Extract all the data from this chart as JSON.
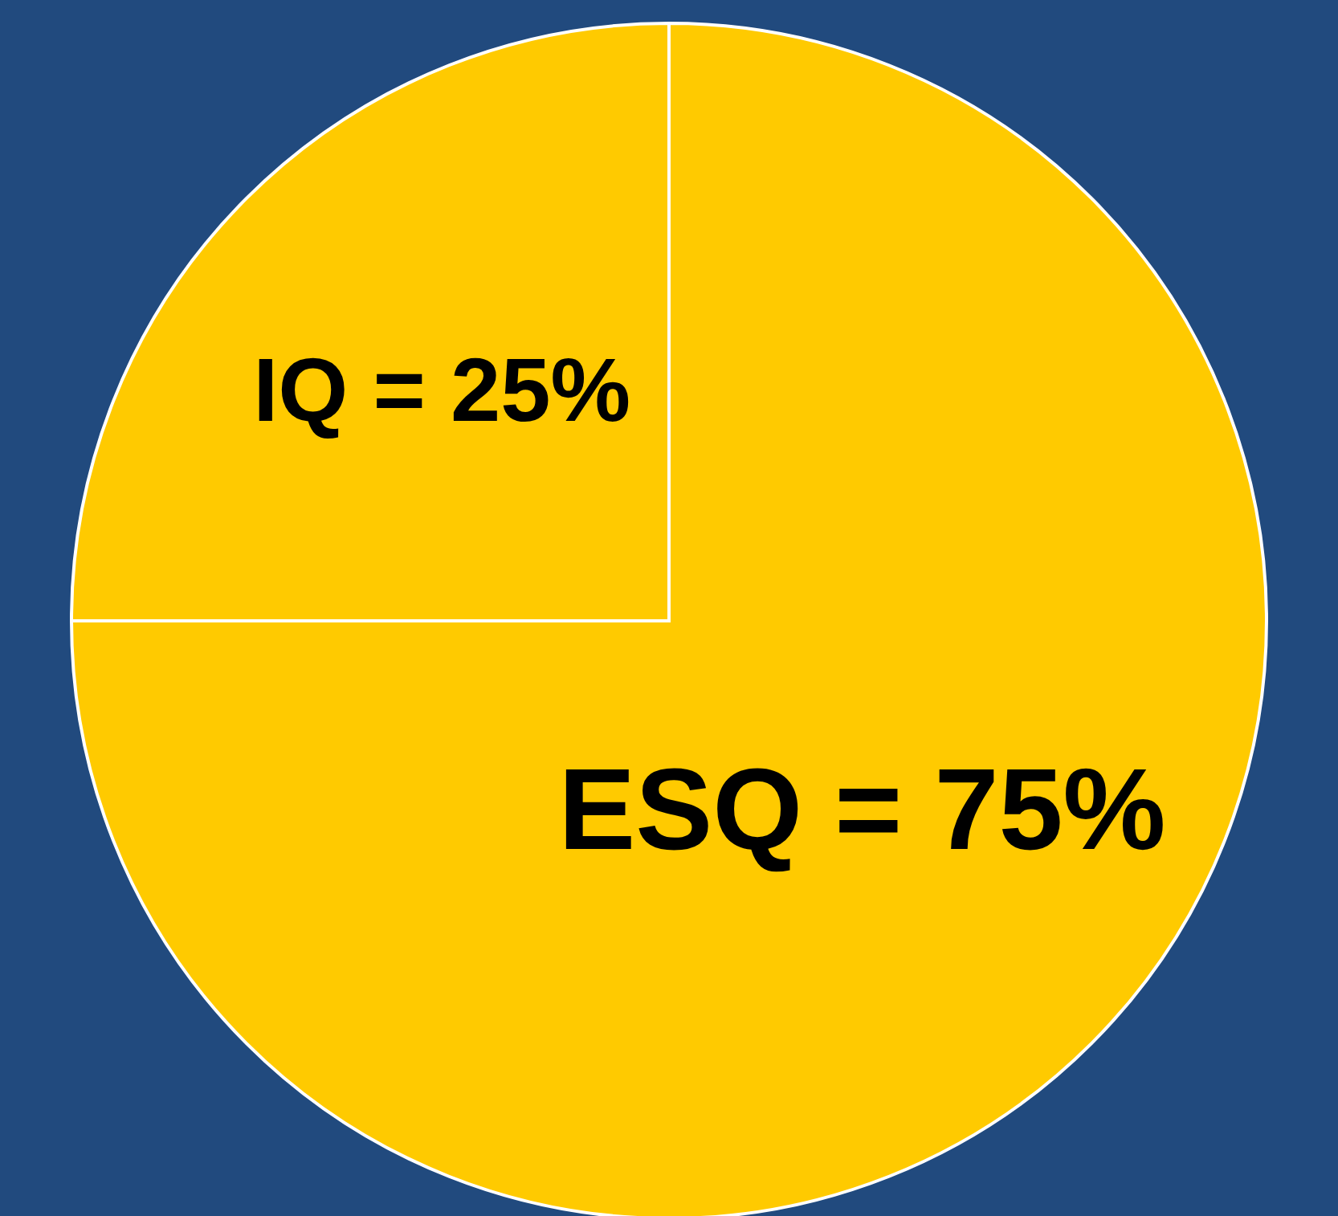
{
  "chart_data": {
    "type": "pie",
    "categories": [
      "IQ = 25%",
      "ESQ = 75%"
    ],
    "values": [
      25,
      75
    ],
    "colors": [
      "#ffca00",
      "#ffca00"
    ]
  }
}
